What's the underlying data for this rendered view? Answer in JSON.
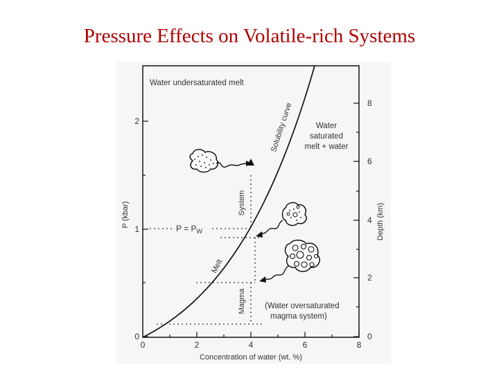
{
  "slide": {
    "title": "Pressure Effects on Volatile-rich Systems"
  },
  "figure": {
    "region_labels": {
      "undersaturated": "Water undersaturated melt",
      "saturated": [
        "Water",
        "saturated",
        "melt + water"
      ],
      "oversaturated": [
        "(Water oversaturated",
        "magma system)"
      ]
    },
    "curve_label": "Solubility curve",
    "system_label": "System",
    "melt_label": "Melt",
    "magma_label": "Magma",
    "pw_label": "P = P",
    "pw_subscript": "W",
    "x_axis": {
      "label": "Concentration of water (wt. %)",
      "ticks": [
        "0",
        "2",
        "4",
        "6",
        "8"
      ]
    },
    "y_axis_left": {
      "label": "P (kbar)",
      "ticks": [
        "0",
        "1",
        "2"
      ]
    },
    "y_axis_right": {
      "label": "Depth (km)",
      "ticks": [
        "0",
        "2",
        "4",
        "6",
        "8"
      ]
    }
  },
  "colors": {
    "title": "#b00000",
    "figure_bg": "#f6f6f6"
  }
}
